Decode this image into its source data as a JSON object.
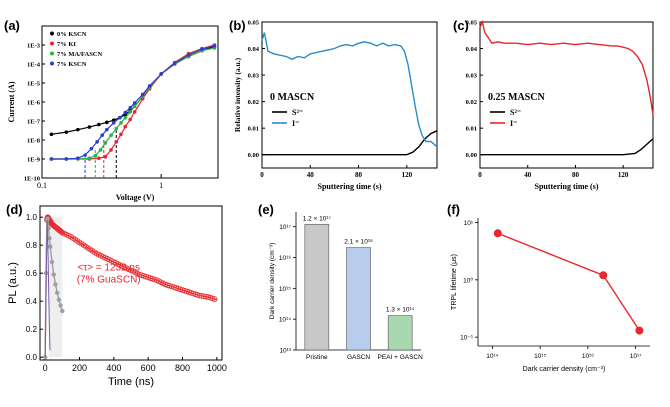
{
  "chart_data": [
    {
      "panel": "(a)",
      "type": "scatter",
      "xlabel": "Voltage (V)",
      "ylabel": "Current (A)",
      "x_scale": "log",
      "y_scale": "log",
      "x_tick_labels": [
        "0.1",
        "1"
      ],
      "y_tick_labels": [
        "1E-3",
        "1E-4",
        "1E-5",
        "1E-6",
        "1E-7",
        "1E-8",
        "1E-9",
        "1E-10"
      ],
      "legend": [
        "0% KSCN",
        "7% KI",
        "7% MA/FASCN",
        "7% KSCN"
      ],
      "colors": [
        "#000000",
        "#e8262c",
        "#2db34a",
        "#2b3fd1"
      ],
      "legend_position": "top-left",
      "series": [
        {
          "name": "0% KSCN",
          "x": [
            0.12,
            0.16,
            0.2,
            0.25,
            0.3,
            0.35,
            0.4,
            0.45,
            0.5,
            0.55,
            0.6,
            0.7,
            0.8,
            1.0,
            1.3,
            1.7,
            2.2,
            2.8
          ],
          "y": [
            2e-08,
            2.6e-08,
            3.5e-08,
            4.8e-08,
            6.5e-08,
            8.5e-08,
            1.1e-07,
            1.5e-07,
            2.2e-07,
            3.5e-07,
            6e-07,
            2e-06,
            6e-06,
            3e-05,
            0.0001,
            0.00025,
            0.0005,
            0.0008
          ]
        },
        {
          "name": "7% KI",
          "x": [
            0.12,
            0.16,
            0.2,
            0.25,
            0.3,
            0.34,
            0.38,
            0.42,
            0.46,
            0.5,
            0.55,
            0.6,
            0.7,
            0.8,
            1.0,
            1.3,
            1.7,
            2.2,
            2.8
          ],
          "y": [
            1e-09,
            1e-09,
            1e-09,
            1e-09,
            1.1e-09,
            1.3e-09,
            3e-09,
            8e-09,
            2e-08,
            5e-08,
            1.2e-07,
            3e-07,
            1.5e-06,
            5e-06,
            3e-05,
            0.00012,
            0.00035,
            0.00065,
            0.001
          ]
        },
        {
          "name": "7% MA/FASCN",
          "x": [
            0.12,
            0.16,
            0.2,
            0.25,
            0.28,
            0.31,
            0.34,
            0.38,
            0.42,
            0.46,
            0.5,
            0.55,
            0.6,
            0.7,
            0.8,
            1.0,
            1.3,
            1.7,
            2.2,
            2.8
          ],
          "y": [
            1e-09,
            1e-09,
            1e-09,
            1.1e-09,
            1.5e-09,
            3e-09,
            7e-09,
            1.8e-08,
            4e-08,
            8e-08,
            1.5e-07,
            3e-07,
            6e-07,
            2e-06,
            6e-06,
            3e-05,
            0.0001,
            0.00025,
            0.0005,
            0.0007
          ]
        },
        {
          "name": "7% KSCN",
          "x": [
            0.12,
            0.16,
            0.2,
            0.23,
            0.26,
            0.29,
            0.32,
            0.35,
            0.4,
            0.45,
            0.5,
            0.55,
            0.6,
            0.7,
            0.8,
            1.0,
            1.3,
            1.7,
            2.2,
            2.8
          ],
          "y": [
            1e-09,
            1e-09,
            1.1e-09,
            1.6e-09,
            3.5e-09,
            8e-09,
            1.8e-08,
            3.5e-08,
            8e-08,
            1.5e-07,
            2.8e-07,
            5e-07,
            9e-07,
            2.5e-06,
            7e-06,
            3e-05,
            0.00011,
            0.0003,
            0.0006,
            0.0009
          ]
        }
      ],
      "dashed_drop_x": [
        0.23,
        0.28,
        0.33,
        0.42
      ]
    },
    {
      "panel": "(b)",
      "type": "line",
      "xlabel": "Sputtering time (s)",
      "ylabel": "Relative intensity (a.u.)",
      "annotation": "0 MASCN",
      "legend": [
        "S²⁻",
        "I⁻"
      ],
      "colors": [
        "#000000",
        "#2a8cc7"
      ],
      "x_ticks": [
        0,
        40,
        80,
        120
      ],
      "y_ticks": [
        "0.00",
        "0.01",
        "0.02",
        "0.03",
        "0.04",
        "0.05"
      ],
      "xlim": [
        0,
        145
      ],
      "ylim": [
        -0.005,
        0.05
      ],
      "series": [
        {
          "name": "S²⁻",
          "x": [
            0,
            20,
            40,
            60,
            80,
            100,
            110,
            120,
            125,
            130,
            135,
            140,
            145
          ],
          "y": [
            0,
            0,
            0,
            0,
            0,
            0,
            0,
            0,
            0.001,
            0.003,
            0.006,
            0.008,
            0.009
          ]
        },
        {
          "name": "I⁻",
          "x": [
            0,
            2,
            5,
            10,
            15,
            20,
            25,
            30,
            35,
            40,
            45,
            50,
            55,
            60,
            65,
            70,
            75,
            80,
            85,
            90,
            95,
            100,
            105,
            110,
            115,
            118,
            121,
            124,
            127,
            130,
            133,
            136,
            140,
            145
          ],
          "y": [
            0.043,
            0.046,
            0.039,
            0.038,
            0.0375,
            0.037,
            0.036,
            0.037,
            0.0365,
            0.038,
            0.0385,
            0.039,
            0.0395,
            0.04,
            0.041,
            0.0415,
            0.041,
            0.042,
            0.0425,
            0.042,
            0.041,
            0.042,
            0.041,
            0.0415,
            0.041,
            0.039,
            0.034,
            0.026,
            0.018,
            0.011,
            0.007,
            0.005,
            0.005,
            0.003
          ]
        }
      ]
    },
    {
      "panel": "(c)",
      "type": "line",
      "xlabel": "Sputtering time (s)",
      "ylabel": "",
      "annotation": "0.25 MASCN",
      "legend": [
        "S²⁻",
        "I⁻"
      ],
      "colors": [
        "#000000",
        "#e8262c"
      ],
      "x_ticks": [
        0,
        40,
        80,
        120
      ],
      "y_ticks": [
        "0.00",
        "0.01",
        "0.02",
        "0.03",
        "0.04",
        "0.05"
      ],
      "xlim": [
        0,
        145
      ],
      "ylim": [
        -0.005,
        0.05
      ],
      "series": [
        {
          "name": "S²⁻",
          "x": [
            0,
            20,
            40,
            60,
            80,
            100,
            120,
            130,
            135,
            140,
            145
          ],
          "y": [
            0,
            0,
            0,
            0,
            0,
            0,
            0,
            0.0005,
            0.002,
            0.004,
            0.006
          ]
        },
        {
          "name": "I⁻",
          "x": [
            0,
            2,
            4,
            7,
            10,
            15,
            20,
            30,
            40,
            50,
            60,
            70,
            80,
            90,
            100,
            110,
            115,
            120,
            124,
            128,
            132,
            136,
            140,
            143,
            145
          ],
          "y": [
            0.048,
            0.05,
            0.046,
            0.044,
            0.042,
            0.0425,
            0.042,
            0.042,
            0.0415,
            0.042,
            0.0415,
            0.042,
            0.0415,
            0.042,
            0.0415,
            0.041,
            0.041,
            0.0405,
            0.04,
            0.039,
            0.037,
            0.034,
            0.028,
            0.021,
            0.015
          ]
        }
      ]
    },
    {
      "panel": "(d)",
      "type": "scatter",
      "xlabel": "Time (ns)",
      "ylabel": "PL (a.u.)",
      "annotation": "<τ> = 1232 ns",
      "annotation2": "(7% GuaSCN)",
      "colors": [
        "#e8262c",
        "#a0a0a0",
        "#7b5ea7"
      ],
      "x_ticks": [
        0,
        200,
        400,
        600,
        800,
        1000
      ],
      "y_ticks": [
        "0.0",
        "0.2",
        "0.4",
        "0.6",
        "0.8",
        "1.0"
      ],
      "xlim": [
        -30,
        1030
      ],
      "ylim": [
        -0.02,
        1.08
      ],
      "series": [
        {
          "name": "decay",
          "x": [
            0,
            5,
            10,
            15,
            20,
            30,
            40,
            60,
            80,
            100,
            150,
            200,
            250,
            300,
            350,
            400,
            450,
            500,
            550,
            600,
            650,
            700,
            750,
            800,
            850,
            900,
            950,
            1000
          ],
          "y": [
            0.0,
            0.5,
            0.98,
            1.0,
            0.99,
            0.97,
            0.95,
            0.93,
            0.91,
            0.89,
            0.86,
            0.82,
            0.78,
            0.74,
            0.71,
            0.68,
            0.65,
            0.62,
            0.59,
            0.57,
            0.55,
            0.52,
            0.5,
            0.48,
            0.46,
            0.44,
            0.43,
            0.41
          ]
        },
        {
          "name": "reference",
          "x": [
            0,
            5,
            10,
            15,
            20,
            25,
            30,
            40,
            50,
            60,
            70,
            80,
            90,
            100
          ],
          "y": [
            0.0,
            0.6,
            0.98,
            0.99,
            0.92,
            0.85,
            0.79,
            0.68,
            0.59,
            0.52,
            0.46,
            0.41,
            0.37,
            0.33
          ]
        },
        {
          "name": "irf",
          "x": [
            0,
            4,
            8,
            12,
            16,
            20,
            24,
            28
          ],
          "y": [
            0.0,
            0.3,
            0.7,
            0.98,
            0.8,
            0.5,
            0.25,
            0.05
          ]
        }
      ]
    },
    {
      "panel": "(e)",
      "type": "bar",
      "ylabel": "Dark carrier density (cm⁻³)",
      "y_scale": "log",
      "y_tick_labels": [
        "10¹⁷",
        "10¹⁶",
        "10¹⁵",
        "10¹⁴",
        "10¹³"
      ],
      "ylim": [
        10000000000000.0,
        3e+17
      ],
      "categories": [
        "Pristine",
        "GASCN",
        "PEAI + GASCN"
      ],
      "values": [
        1.2e+17,
        2.1e+16,
        130000000000000.0
      ],
      "value_labels": [
        "1.2 × 10¹⁷",
        "2.1 × 10¹⁶",
        "1.3 × 10¹⁴"
      ],
      "colors": [
        "#c8c8c8",
        "#b7cdeb",
        "#a7d8b0"
      ]
    },
    {
      "panel": "(f)",
      "type": "line",
      "xlabel": "Dark carrier density (cm⁻³)",
      "ylabel": "TRPL lifetime (μs)",
      "x_scale": "log",
      "y_scale": "log",
      "x_tick_labels": [
        "10¹⁴",
        "10¹⁵",
        "10¹⁶",
        "10¹⁷"
      ],
      "y_tick_labels": [
        "10¹",
        "10⁰",
        "10⁻¹"
      ],
      "xlim": [
        50000000000000.0,
        2e+17
      ],
      "ylim": [
        0.07,
        12
      ],
      "colors": [
        "#e8262c"
      ],
      "series": [
        {
          "name": "lifetime",
          "x": [
            130000000000000.0,
            2.1e+16,
            1.2e+17
          ],
          "y": [
            6.5,
            1.2,
            0.13
          ]
        }
      ]
    }
  ]
}
